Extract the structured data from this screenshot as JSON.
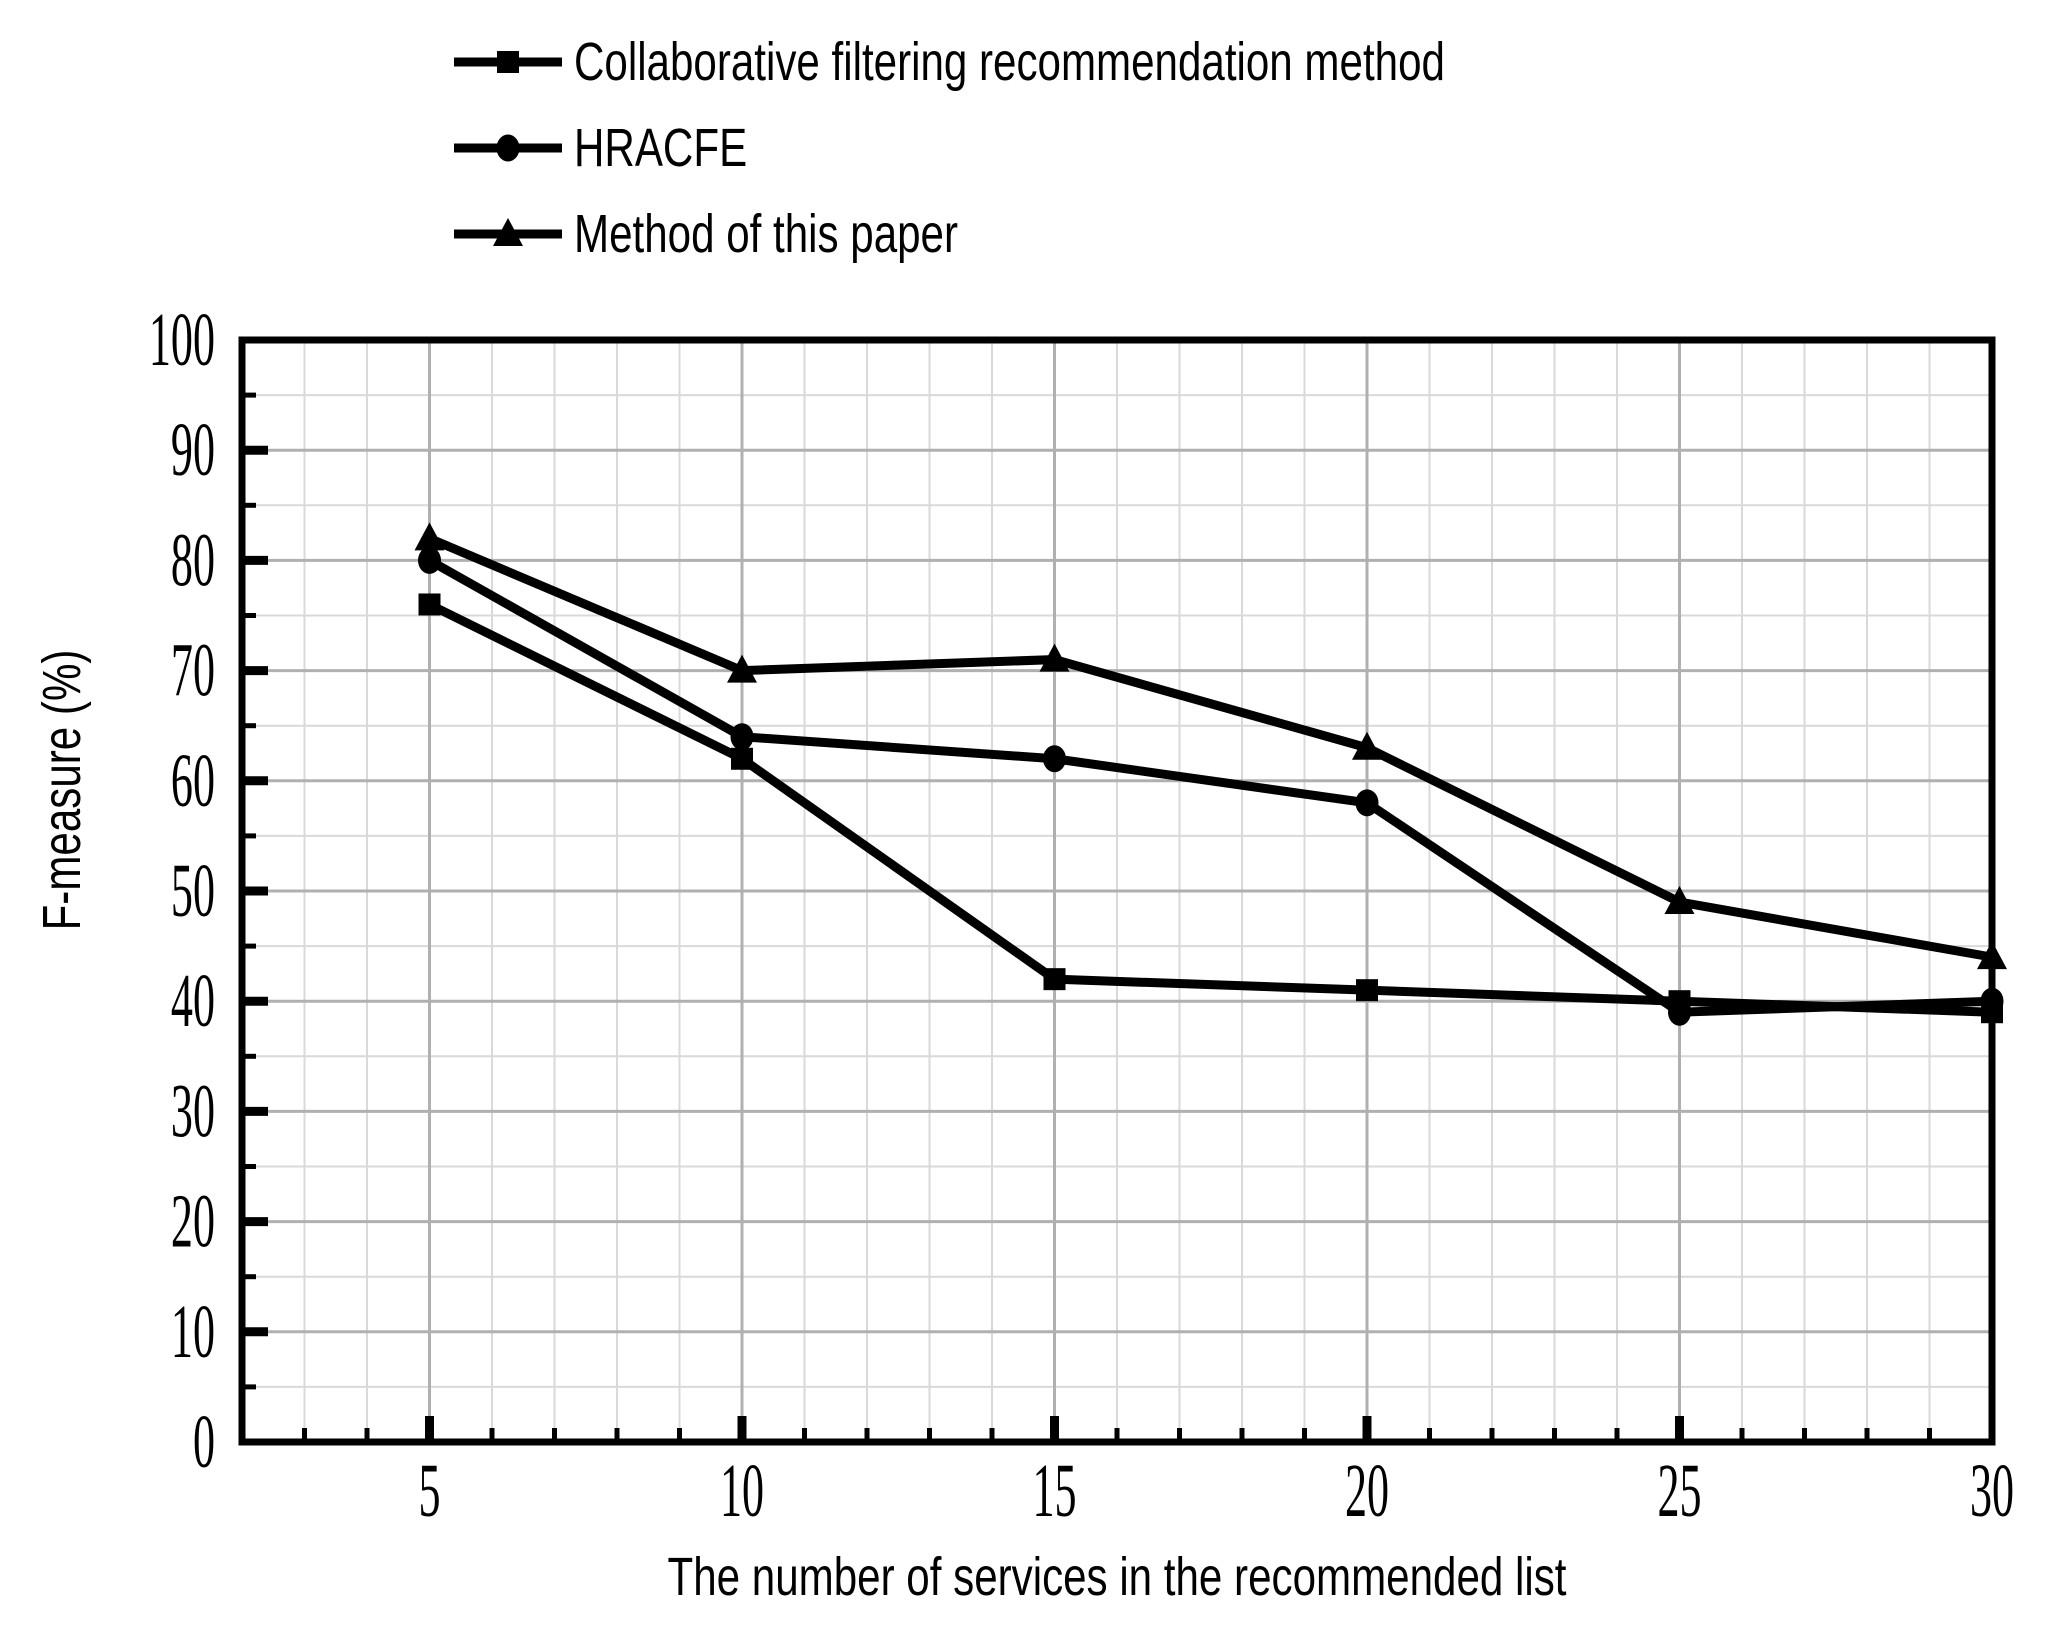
{
  "figure": {
    "background": "#ffffff"
  },
  "chart_data": {
    "type": "line",
    "x": [
      5,
      10,
      15,
      20,
      25,
      30
    ],
    "series": [
      {
        "name": "Collaborative filtering recommendation method",
        "marker": "square",
        "color": "#000000",
        "values": [
          76,
          62,
          42,
          41,
          40,
          39
        ]
      },
      {
        "name": "HRACFE",
        "marker": "circle",
        "color": "#000000",
        "values": [
          80,
          64,
          62,
          58,
          39,
          40
        ]
      },
      {
        "name": "Method of this paper",
        "marker": "triangle",
        "color": "#000000",
        "values": [
          82,
          70,
          71,
          63,
          49,
          44
        ]
      }
    ],
    "xlabel": "The number of services in the recommended list",
    "ylabel": "F-measure (%)",
    "xlim": [
      2,
      30
    ],
    "ylim": [
      0,
      100
    ],
    "x_major_ticks": [
      5,
      10,
      15,
      20,
      25,
      30
    ],
    "y_major_ticks": [
      0,
      10,
      20,
      30,
      40,
      50,
      60,
      70,
      80,
      90,
      100
    ],
    "x_minor_step": 1,
    "y_minor_step": 5,
    "grid": "on",
    "legend_position": "top-left",
    "axis_color": "#000000",
    "grid_major_color": "#b0b0b0",
    "grid_minor_color": "#d9d9d9"
  }
}
